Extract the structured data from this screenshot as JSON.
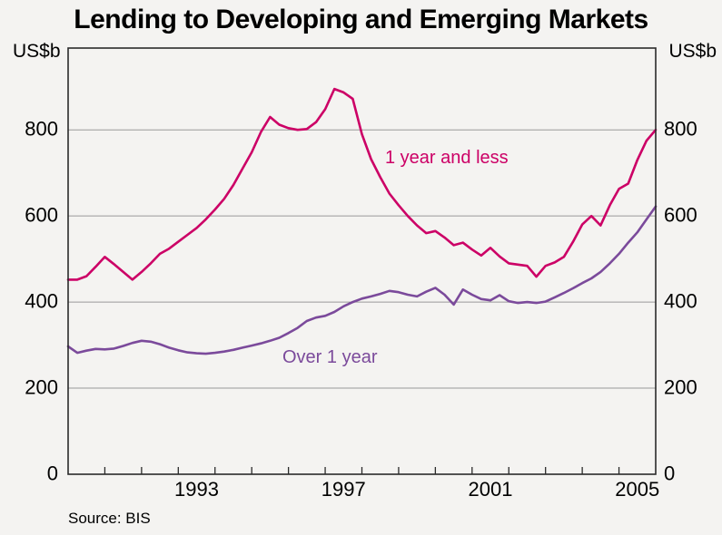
{
  "title": "Lending to Developing and Emerging Markets",
  "y_axis_unit_left": "US$b",
  "y_axis_unit_right": "US$b",
  "source": "Source: BIS",
  "colors": {
    "series_1_year_and_less": "#cc0066",
    "series_over_1_year": "#7b4a9b",
    "gridline": "#999999",
    "axis_border": "#2a2a2a",
    "background": "#f4f3f1",
    "text": "#000000"
  },
  "chart_data": {
    "type": "line",
    "title": "Lending to Developing and Emerging Markets",
    "y_unit": "US$b",
    "xlim": [
      1990,
      2006
    ],
    "ylim": [
      0,
      990
    ],
    "grid": "horizontal",
    "legend_position": "inline-labels",
    "x_start": 1990,
    "x_step": 0.25,
    "x_end": 2006,
    "x_tick_years": [
      1991,
      1992,
      1993,
      1994,
      1995,
      1996,
      1997,
      1998,
      1999,
      2000,
      2001,
      2002,
      2003,
      2004,
      2005
    ],
    "x_axis_labeled_years": [
      "1993",
      "1997",
      "2001",
      "2005"
    ],
    "y_ticks": [
      "0",
      "200",
      "400",
      "600",
      "800"
    ],
    "series": [
      {
        "name": "1 year and less",
        "color": "#cc0066",
        "values": [
          452,
          452,
          460,
          482,
          505,
          488,
          470,
          452,
          470,
          490,
          512,
          524,
          540,
          556,
          572,
          592,
          615,
          640,
          672,
          710,
          748,
          795,
          830,
          812,
          804,
          800,
          802,
          818,
          848,
          895,
          887,
          872,
          790,
          732,
          690,
          652,
          625,
          600,
          578,
          560,
          565,
          550,
          532,
          538,
          522,
          508,
          526,
          506,
          490,
          487,
          484,
          459,
          484,
          492,
          505,
          540,
          580,
          600,
          578,
          625,
          663,
          675,
          730,
          775,
          800
        ]
      },
      {
        "name": "Over 1 year",
        "color": "#7b4a9b",
        "values": [
          297,
          282,
          287,
          291,
          290,
          292,
          298,
          305,
          310,
          308,
          302,
          294,
          288,
          283,
          281,
          280,
          282,
          285,
          289,
          294,
          299,
          304,
          310,
          317,
          328,
          340,
          356,
          364,
          368,
          377,
          390,
          400,
          408,
          413,
          419,
          426,
          423,
          417,
          413,
          424,
          433,
          417,
          394,
          429,
          417,
          407,
          404,
          416,
          402,
          398,
          400,
          398,
          401,
          411,
          421,
          432,
          444,
          455,
          470,
          490,
          512,
          538,
          562,
          592,
          622
        ]
      }
    ],
    "source": "Source: BIS"
  }
}
